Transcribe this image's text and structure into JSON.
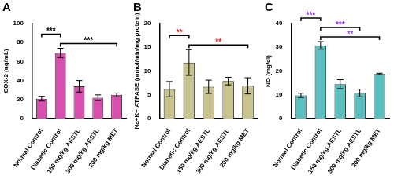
{
  "chart_data": [
    {
      "type": "bar",
      "title": "A",
      "y_label": "COX-2 (ng/mL)",
      "categories": [
        "Normal Control",
        "Diabetic Control",
        "150 mg/kg AESTL",
        "300 mg/kg AESTL",
        "200 mg/kg MET"
      ],
      "values": [
        21,
        69,
        34,
        22,
        25
      ],
      "errors": [
        2.5,
        5,
        6,
        3,
        2
      ],
      "color": "#d94fb0",
      "ylim": [
        0,
        100
      ],
      "yticks": [
        0,
        20,
        40,
        60,
        80,
        100
      ],
      "grid": false,
      "annotations": [
        {
          "from": "Diabetic Control",
          "to": "200 mg/kg MET",
          "label": "***",
          "color": "#000000"
        },
        {
          "from": "Normal Control",
          "to": "Diabetic Control",
          "label": "***",
          "color": "#000000"
        }
      ]
    },
    {
      "type": "bar",
      "title": "B",
      "y_label": "Na+K+ ATPASE (mmol/min/mg protein)",
      "categories": [
        "Normal Control",
        "Diabetic Control",
        "150 mg/kg AESTL",
        "300 mg/kg AESTL",
        "200 mg/kg MET"
      ],
      "values": [
        6.2,
        11.8,
        6.7,
        7.9,
        6.9
      ],
      "errors": [
        1.6,
        2.7,
        1.4,
        0.8,
        1.7
      ],
      "color": "#c9c48f",
      "ylim": [
        0,
        20
      ],
      "yticks": [
        0,
        5,
        10,
        15,
        20
      ],
      "grid": false,
      "annotations": [
        {
          "from": "Diabetic Control",
          "to": "200 mg/kg MET",
          "label": "**",
          "color": "#e0201b"
        },
        {
          "from": "Normal Control",
          "to": "Diabetic Control",
          "label": "**",
          "color": "#e0201b"
        }
      ]
    },
    {
      "type": "bar",
      "title": "C",
      "y_label": "NO (mg/dl)",
      "categories": [
        "Normal Control",
        "Diabetic Control",
        "150 mg/kg AESTL",
        "300 mg/kg AESTL",
        "200 mg/kg MET"
      ],
      "values": [
        9.8,
        30.8,
        14.5,
        10.8,
        18.8
      ],
      "errors": [
        0.9,
        1.6,
        1.9,
        1.6,
        0.3
      ],
      "color": "#5bbfbf",
      "ylim": [
        0,
        40
      ],
      "yticks": [
        0,
        10,
        20,
        30,
        40
      ],
      "grid": false,
      "annotations": [
        {
          "from": "Diabetic Control",
          "to": "200 mg/kg MET",
          "label": "**",
          "color": "#8a2be2"
        },
        {
          "from": "Diabetic Control",
          "to": "300 mg/kg AESTL",
          "label": "***",
          "color": "#8a2be2"
        },
        {
          "from": "Normal Control",
          "to": "Diabetic Control",
          "label": "***",
          "color": "#8a2be2"
        }
      ]
    }
  ]
}
